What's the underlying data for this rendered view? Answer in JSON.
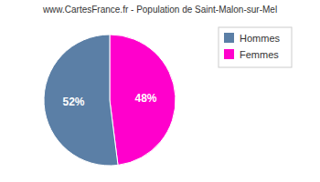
{
  "chart_data": {
    "type": "pie",
    "title": "www.CartesFrance.fr - Population de Saint-Malon-sur-Mel",
    "categories": [
      "Femmes",
      "Hommes"
    ],
    "values": [
      48,
      52
    ],
    "value_labels": [
      "48%",
      "52%"
    ],
    "colors": [
      "#ff00cc",
      "#5b7fa6"
    ],
    "data_labels": true,
    "legend": "upper right"
  }
}
